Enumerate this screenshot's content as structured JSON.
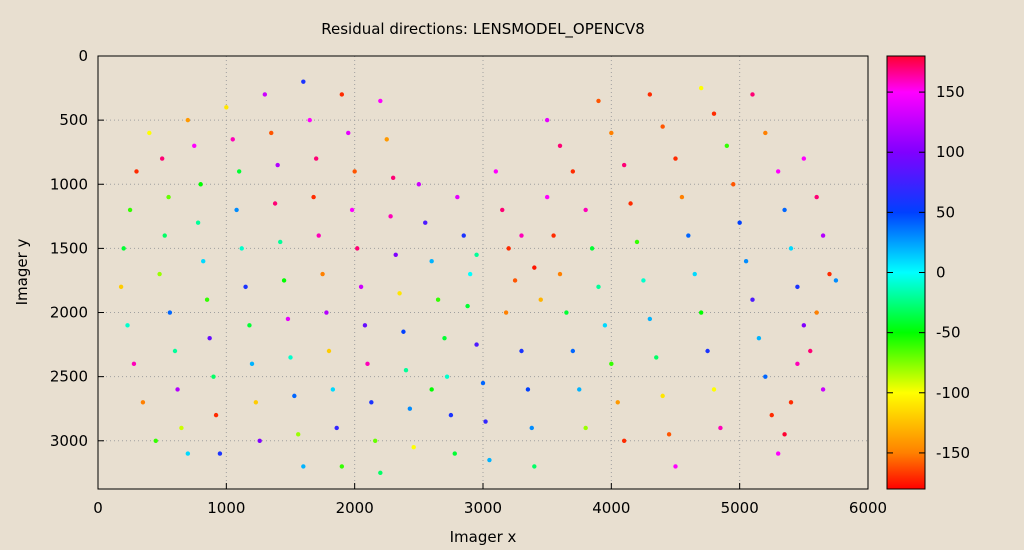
{
  "chart_data": {
    "type": "scatter",
    "title": "Residual directions: LENSMODEL_OPENCV8",
    "xlabel": "Imager x",
    "ylabel": "Imager y",
    "xlim": [
      0,
      6000
    ],
    "ylim": [
      3376,
      0
    ],
    "y_reversed": true,
    "x_ticks": [
      "0",
      "1000",
      "2000",
      "3000",
      "4000",
      "5000",
      "6000"
    ],
    "y_ticks": [
      "0",
      "500",
      "1000",
      "1500",
      "2000",
      "2500",
      "3000"
    ],
    "grid": true,
    "colorbar": {
      "range": [
        -180,
        180
      ],
      "ticks": [
        "150",
        "100",
        "50",
        "0",
        "-50",
        "-100",
        "-150"
      ],
      "palette": "hsv",
      "stops": [
        [
          -180,
          "#ff0000"
        ],
        [
          -150,
          "#ff8000"
        ],
        [
          -100,
          "#ffff00"
        ],
        [
          -50,
          "#00ff00"
        ],
        [
          0,
          "#00ffff"
        ],
        [
          50,
          "#0040ff"
        ],
        [
          100,
          "#8000ff"
        ],
        [
          150,
          "#ff00ff"
        ],
        [
          180,
          "#ff0030"
        ]
      ]
    },
    "points_note_columns": [
      "x",
      "y",
      "direction"
    ],
    "points": [
      [
        300,
        900,
        -170
      ],
      [
        250,
        1200,
        -60
      ],
      [
        200,
        1500,
        -40
      ],
      [
        180,
        1800,
        -120
      ],
      [
        230,
        2100,
        -10
      ],
      [
        280,
        2400,
        160
      ],
      [
        350,
        2700,
        -150
      ],
      [
        450,
        3000,
        -60
      ],
      [
        400,
        600,
        -100
      ],
      [
        500,
        800,
        170
      ],
      [
        550,
        1100,
        -70
      ],
      [
        520,
        1400,
        -30
      ],
      [
        480,
        1700,
        -80
      ],
      [
        560,
        2000,
        40
      ],
      [
        600,
        2300,
        -20
      ],
      [
        620,
        2600,
        120
      ],
      [
        650,
        2900,
        -90
      ],
      [
        700,
        3100,
        10
      ],
      [
        700,
        500,
        -140
      ],
      [
        750,
        700,
        150
      ],
      [
        800,
        1000,
        -50
      ],
      [
        780,
        1300,
        -20
      ],
      [
        820,
        1600,
        10
      ],
      [
        850,
        1900,
        -60
      ],
      [
        870,
        2200,
        90
      ],
      [
        900,
        2500,
        -30
      ],
      [
        920,
        2800,
        -170
      ],
      [
        950,
        3100,
        60
      ],
      [
        1000,
        400,
        -110
      ],
      [
        1050,
        650,
        160
      ],
      [
        1100,
        900,
        -40
      ],
      [
        1080,
        1200,
        30
      ],
      [
        1120,
        1500,
        -10
      ],
      [
        1150,
        1800,
        60
      ],
      [
        1180,
        2100,
        -40
      ],
      [
        1200,
        2400,
        20
      ],
      [
        1230,
        2700,
        -120
      ],
      [
        1260,
        3000,
        100
      ],
      [
        1300,
        300,
        130
      ],
      [
        1350,
        600,
        -160
      ],
      [
        1400,
        850,
        120
      ],
      [
        1380,
        1150,
        170
      ],
      [
        1420,
        1450,
        -20
      ],
      [
        1450,
        1750,
        -50
      ],
      [
        1480,
        2050,
        140
      ],
      [
        1500,
        2350,
        -10
      ],
      [
        1530,
        2650,
        40
      ],
      [
        1560,
        2950,
        -80
      ],
      [
        1600,
        3200,
        20
      ],
      [
        1600,
        200,
        60
      ],
      [
        1650,
        500,
        150
      ],
      [
        1700,
        800,
        170
      ],
      [
        1680,
        1100,
        -170
      ],
      [
        1720,
        1400,
        160
      ],
      [
        1750,
        1700,
        -150
      ],
      [
        1780,
        2000,
        120
      ],
      [
        1800,
        2300,
        -120
      ],
      [
        1830,
        2600,
        10
      ],
      [
        1860,
        2900,
        70
      ],
      [
        1900,
        3200,
        -60
      ],
      [
        1900,
        300,
        -170
      ],
      [
        1950,
        600,
        140
      ],
      [
        2000,
        900,
        -160
      ],
      [
        1980,
        1200,
        150
      ],
      [
        2020,
        1500,
        170
      ],
      [
        2050,
        1800,
        130
      ],
      [
        2080,
        2100,
        90
      ],
      [
        2100,
        2400,
        160
      ],
      [
        2130,
        2700,
        60
      ],
      [
        2160,
        3000,
        -70
      ],
      [
        2200,
        3250,
        -30
      ],
      [
        2200,
        350,
        150
      ],
      [
        2250,
        650,
        -140
      ],
      [
        2300,
        950,
        170
      ],
      [
        2280,
        1250,
        160
      ],
      [
        2320,
        1550,
        100
      ],
      [
        2350,
        1850,
        -110
      ],
      [
        2380,
        2150,
        50
      ],
      [
        2400,
        2450,
        -20
      ],
      [
        2430,
        2750,
        30
      ],
      [
        2460,
        3050,
        -100
      ],
      [
        2500,
        1000,
        130
      ],
      [
        2550,
        1300,
        80
      ],
      [
        2600,
        1600,
        20
      ],
      [
        2650,
        1900,
        -60
      ],
      [
        2700,
        2200,
        -40
      ],
      [
        2720,
        2500,
        -10
      ],
      [
        2750,
        2800,
        60
      ],
      [
        2780,
        3100,
        -40
      ],
      [
        2600,
        2600,
        -50
      ],
      [
        2800,
        1100,
        140
      ],
      [
        2850,
        1400,
        60
      ],
      [
        2900,
        1700,
        0
      ],
      [
        2880,
        1950,
        -40
      ],
      [
        2950,
        2250,
        80
      ],
      [
        3000,
        2550,
        40
      ],
      [
        3020,
        2850,
        70
      ],
      [
        3050,
        3150,
        20
      ],
      [
        2950,
        1550,
        -20
      ],
      [
        3100,
        900,
        150
      ],
      [
        3150,
        1200,
        170
      ],
      [
        3200,
        1500,
        -170
      ],
      [
        3250,
        1750,
        -160
      ],
      [
        3180,
        2000,
        -150
      ],
      [
        3300,
        2300,
        60
      ],
      [
        3350,
        2600,
        50
      ],
      [
        3380,
        2900,
        30
      ],
      [
        3400,
        3200,
        -30
      ],
      [
        3300,
        1400,
        160
      ],
      [
        3400,
        1650,
        -175
      ],
      [
        3450,
        1900,
        -130
      ],
      [
        3500,
        1100,
        150
      ],
      [
        3550,
        1400,
        -170
      ],
      [
        3600,
        1700,
        -150
      ],
      [
        3650,
        2000,
        -40
      ],
      [
        3700,
        2300,
        40
      ],
      [
        3750,
        2600,
        20
      ],
      [
        3800,
        2900,
        -80
      ],
      [
        3500,
        500,
        140
      ],
      [
        3600,
        700,
        170
      ],
      [
        3700,
        900,
        -170
      ],
      [
        3800,
        1200,
        160
      ],
      [
        3850,
        1500,
        -40
      ],
      [
        3900,
        1800,
        -20
      ],
      [
        3950,
        2100,
        10
      ],
      [
        4000,
        2400,
        -60
      ],
      [
        4050,
        2700,
        -140
      ],
      [
        4100,
        3000,
        -170
      ],
      [
        3900,
        350,
        -160
      ],
      [
        4000,
        600,
        -150
      ],
      [
        4100,
        850,
        170
      ],
      [
        4150,
        1150,
        -170
      ],
      [
        4200,
        1450,
        -60
      ],
      [
        4250,
        1750,
        -10
      ],
      [
        4300,
        2050,
        20
      ],
      [
        4350,
        2350,
        -30
      ],
      [
        4400,
        2650,
        -110
      ],
      [
        4450,
        2950,
        -160
      ],
      [
        4500,
        3200,
        150
      ],
      [
        4300,
        300,
        -170
      ],
      [
        4400,
        550,
        -160
      ],
      [
        4500,
        800,
        -170
      ],
      [
        4550,
        1100,
        -150
      ],
      [
        4600,
        1400,
        40
      ],
      [
        4650,
        1700,
        10
      ],
      [
        4700,
        2000,
        -50
      ],
      [
        4750,
        2300,
        60
      ],
      [
        4800,
        2600,
        -100
      ],
      [
        4850,
        2900,
        160
      ],
      [
        4700,
        250,
        -100
      ],
      [
        4800,
        450,
        -170
      ],
      [
        4900,
        700,
        -60
      ],
      [
        4950,
        1000,
        -160
      ],
      [
        5000,
        1300,
        50
      ],
      [
        5050,
        1600,
        30
      ],
      [
        5100,
        1900,
        80
      ],
      [
        5150,
        2200,
        20
      ],
      [
        5200,
        2500,
        40
      ],
      [
        5250,
        2800,
        -170
      ],
      [
        5300,
        3100,
        150
      ],
      [
        5100,
        300,
        170
      ],
      [
        5200,
        600,
        -150
      ],
      [
        5300,
        900,
        150
      ],
      [
        5350,
        1200,
        40
      ],
      [
        5400,
        1500,
        10
      ],
      [
        5450,
        1800,
        60
      ],
      [
        5500,
        2100,
        100
      ],
      [
        5450,
        2400,
        160
      ],
      [
        5400,
        2700,
        -170
      ],
      [
        5350,
        2950,
        180
      ],
      [
        5500,
        800,
        150
      ],
      [
        5600,
        1100,
        170
      ],
      [
        5650,
        1400,
        120
      ],
      [
        5700,
        1700,
        -170
      ],
      [
        5600,
        2000,
        -150
      ],
      [
        5550,
        2300,
        170
      ],
      [
        5650,
        2600,
        130
      ],
      [
        5750,
        1750,
        30
      ]
    ]
  }
}
